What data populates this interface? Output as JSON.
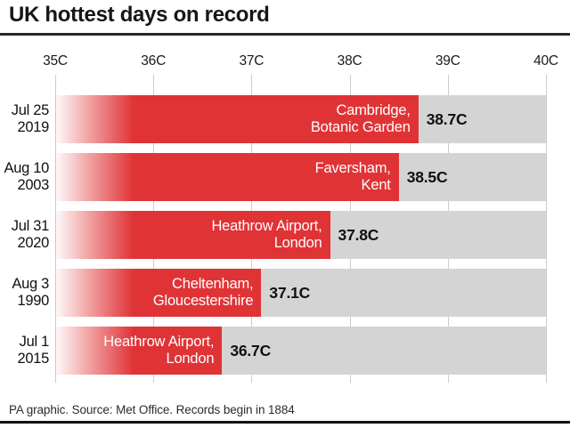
{
  "title": "UK hottest days on record",
  "footer": "PA graphic. Source: Met Office. Records begin in 1884",
  "colors": {
    "bar_red": "#e03336",
    "bar_fade_start": "rgba(224,51,54,0.02)",
    "bar_fade_mid": "rgba(224,51,54,0.5)",
    "track_gray": "#d4d4d4",
    "gridline": "#cccccc",
    "rule_dark": "#29262a",
    "text_dark": "#111111"
  },
  "chart_data": {
    "type": "bar",
    "orientation": "horizontal",
    "title": "UK hottest days on record",
    "unit": "C",
    "xlim": [
      35,
      40
    ],
    "x_ticks": [
      "35C",
      "36C",
      "37C",
      "38C",
      "39C",
      "40C"
    ],
    "x_tick_values": [
      35,
      36,
      37,
      38,
      39,
      40
    ],
    "grid": true,
    "rows": [
      {
        "date": [
          "Jul 25",
          "2019"
        ],
        "location": [
          "Cambridge,",
          "Botanic Garden"
        ],
        "value": 38.7,
        "value_label": "38.7C"
      },
      {
        "date": [
          "Aug 10",
          "2003"
        ],
        "location": [
          "Faversham,",
          "Kent"
        ],
        "value": 38.5,
        "value_label": "38.5C"
      },
      {
        "date": [
          "Jul 31",
          "2020"
        ],
        "location": [
          "Heathrow Airport,",
          "London"
        ],
        "value": 37.8,
        "value_label": "37.8C"
      },
      {
        "date": [
          "Aug 3",
          "1990"
        ],
        "location": [
          "Cheltenham,",
          "Gloucestershire"
        ],
        "value": 37.1,
        "value_label": "37.1C"
      },
      {
        "date": [
          "Jul 1",
          "2015"
        ],
        "location": [
          "Heathrow Airport,",
          "London"
        ],
        "value": 36.7,
        "value_label": "36.7C"
      }
    ]
  }
}
